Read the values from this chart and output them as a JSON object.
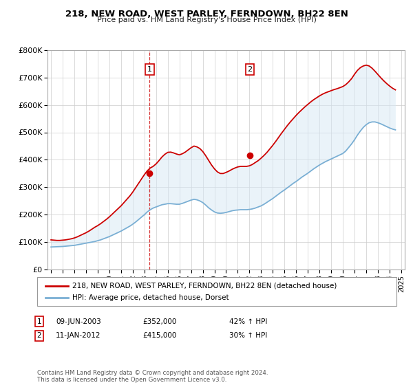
{
  "title": "218, NEW ROAD, WEST PARLEY, FERNDOWN, BH22 8EN",
  "subtitle": "Price paid vs. HM Land Registry's House Price Index (HPI)",
  "legend_line1": "218, NEW ROAD, WEST PARLEY, FERNDOWN, BH22 8EN (detached house)",
  "legend_line2": "HPI: Average price, detached house, Dorset",
  "annotation1_label": "1",
  "annotation1_date": "09-JUN-2003",
  "annotation1_price": "£352,000",
  "annotation1_hpi": "42% ↑ HPI",
  "annotation1_year": 2003.44,
  "annotation1_value": 352000,
  "annotation2_label": "2",
  "annotation2_date": "11-JAN-2012",
  "annotation2_price": "£415,000",
  "annotation2_hpi": "30% ↑ HPI",
  "annotation2_year": 2012.03,
  "annotation2_value": 415000,
  "footer": "Contains HM Land Registry data © Crown copyright and database right 2024.\nThis data is licensed under the Open Government Licence v3.0.",
  "ylim": [
    0,
    800000
  ],
  "xlim_start": 1994.7,
  "xlim_end": 2025.3,
  "red_color": "#cc0000",
  "blue_color": "#7aafd4",
  "fill_color": "#d6e8f5",
  "background_color": "#ffffff",
  "grid_color": "#cccccc",
  "hpi_years": [
    1995,
    1995.25,
    1995.5,
    1995.75,
    1996,
    1996.25,
    1996.5,
    1996.75,
    1997,
    1997.25,
    1997.5,
    1997.75,
    1998,
    1998.25,
    1998.5,
    1998.75,
    1999,
    1999.25,
    1999.5,
    1999.75,
    2000,
    2000.25,
    2000.5,
    2000.75,
    2001,
    2001.25,
    2001.5,
    2001.75,
    2002,
    2002.25,
    2002.5,
    2002.75,
    2003,
    2003.25,
    2003.5,
    2003.75,
    2004,
    2004.25,
    2004.5,
    2004.75,
    2005,
    2005.25,
    2005.5,
    2005.75,
    2006,
    2006.25,
    2006.5,
    2006.75,
    2007,
    2007.25,
    2007.5,
    2007.75,
    2008,
    2008.25,
    2008.5,
    2008.75,
    2009,
    2009.25,
    2009.5,
    2009.75,
    2010,
    2010.25,
    2010.5,
    2010.75,
    2011,
    2011.25,
    2011.5,
    2011.75,
    2012,
    2012.25,
    2012.5,
    2012.75,
    2013,
    2013.25,
    2013.5,
    2013.75,
    2014,
    2014.25,
    2014.5,
    2014.75,
    2015,
    2015.25,
    2015.5,
    2015.75,
    2016,
    2016.25,
    2016.5,
    2016.75,
    2017,
    2017.25,
    2017.5,
    2017.75,
    2018,
    2018.25,
    2018.5,
    2018.75,
    2019,
    2019.25,
    2019.5,
    2019.75,
    2020,
    2020.25,
    2020.5,
    2020.75,
    2021,
    2021.25,
    2021.5,
    2021.75,
    2022,
    2022.25,
    2022.5,
    2022.75,
    2023,
    2023.25,
    2023.5,
    2023.75,
    2024,
    2024.25,
    2024.5
  ],
  "hpi_values": [
    82000,
    82500,
    83000,
    83500,
    84000,
    85000,
    86000,
    87000,
    88000,
    90000,
    92000,
    94000,
    96000,
    98000,
    100000,
    102000,
    105000,
    108000,
    112000,
    116000,
    120000,
    125000,
    130000,
    135000,
    140000,
    146000,
    152000,
    158000,
    165000,
    173000,
    182000,
    191000,
    200000,
    210000,
    218000,
    224000,
    228000,
    232000,
    236000,
    238000,
    240000,
    240000,
    239000,
    238000,
    238000,
    241000,
    245000,
    249000,
    253000,
    256000,
    254000,
    250000,
    244000,
    235000,
    225000,
    217000,
    210000,
    206000,
    205000,
    206000,
    208000,
    211000,
    214000,
    216000,
    217000,
    218000,
    218000,
    218000,
    219000,
    221000,
    224000,
    228000,
    232000,
    238000,
    245000,
    252000,
    259000,
    267000,
    275000,
    283000,
    290000,
    298000,
    306000,
    314000,
    321000,
    329000,
    337000,
    344000,
    351000,
    359000,
    367000,
    374000,
    381000,
    387000,
    393000,
    398000,
    403000,
    408000,
    413000,
    418000,
    423000,
    432000,
    445000,
    458000,
    473000,
    490000,
    505000,
    518000,
    528000,
    535000,
    538000,
    538000,
    535000,
    531000,
    526000,
    521000,
    516000,
    512000,
    509000
  ],
  "red_years": [
    1995,
    1995.25,
    1995.5,
    1995.75,
    1996,
    1996.25,
    1996.5,
    1996.75,
    1997,
    1997.25,
    1997.5,
    1997.75,
    1998,
    1998.25,
    1998.5,
    1998.75,
    1999,
    1999.25,
    1999.5,
    1999.75,
    2000,
    2000.25,
    2000.5,
    2000.75,
    2001,
    2001.25,
    2001.5,
    2001.75,
    2002,
    2002.25,
    2002.5,
    2002.75,
    2003,
    2003.25,
    2003.5,
    2003.75,
    2004,
    2004.25,
    2004.5,
    2004.75,
    2005,
    2005.25,
    2005.5,
    2005.75,
    2006,
    2006.25,
    2006.5,
    2006.75,
    2007,
    2007.25,
    2007.5,
    2007.75,
    2008,
    2008.25,
    2008.5,
    2008.75,
    2009,
    2009.25,
    2009.5,
    2009.75,
    2010,
    2010.25,
    2010.5,
    2010.75,
    2011,
    2011.25,
    2011.5,
    2011.75,
    2012,
    2012.25,
    2012.5,
    2012.75,
    2013,
    2013.25,
    2013.5,
    2013.75,
    2014,
    2014.25,
    2014.5,
    2014.75,
    2015,
    2015.25,
    2015.5,
    2015.75,
    2016,
    2016.25,
    2016.5,
    2016.75,
    2017,
    2017.25,
    2017.5,
    2017.75,
    2018,
    2018.25,
    2018.5,
    2018.75,
    2019,
    2019.25,
    2019.5,
    2019.75,
    2020,
    2020.25,
    2020.5,
    2020.75,
    2021,
    2021.25,
    2021.5,
    2021.75,
    2022,
    2022.25,
    2022.5,
    2022.75,
    2023,
    2023.25,
    2023.5,
    2023.75,
    2024,
    2024.25,
    2024.5
  ],
  "red_values": [
    108000,
    107000,
    106000,
    106000,
    107000,
    108000,
    110000,
    112000,
    115000,
    119000,
    124000,
    129000,
    134000,
    140000,
    147000,
    154000,
    160000,
    167000,
    175000,
    183000,
    192000,
    202000,
    212000,
    222000,
    232000,
    244000,
    256000,
    268000,
    282000,
    298000,
    314000,
    330000,
    346000,
    360000,
    370000,
    376000,
    385000,
    397000,
    410000,
    420000,
    427000,
    428000,
    425000,
    421000,
    418000,
    422000,
    428000,
    436000,
    444000,
    450000,
    447000,
    441000,
    430000,
    415000,
    398000,
    381000,
    367000,
    356000,
    350000,
    350000,
    354000,
    359000,
    365000,
    370000,
    374000,
    376000,
    376000,
    376000,
    378000,
    383000,
    390000,
    397000,
    406000,
    416000,
    427000,
    440000,
    453000,
    467000,
    482000,
    497000,
    511000,
    525000,
    538000,
    550000,
    562000,
    573000,
    583000,
    593000,
    602000,
    611000,
    619000,
    626000,
    633000,
    639000,
    644000,
    648000,
    652000,
    656000,
    659000,
    663000,
    667000,
    674000,
    684000,
    696000,
    712000,
    726000,
    736000,
    742000,
    745000,
    742000,
    734000,
    723000,
    711000,
    699000,
    688000,
    678000,
    669000,
    661000,
    655000
  ]
}
